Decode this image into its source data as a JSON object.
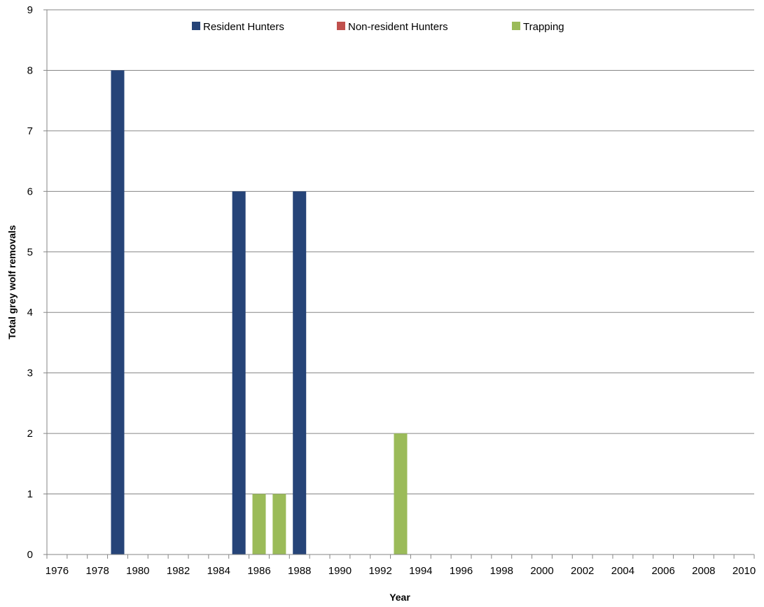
{
  "chart_data": {
    "type": "bar",
    "xlabel": "Year",
    "ylabel": "Total grey wolf removals",
    "ylim": [
      0,
      9
    ],
    "yticks": [
      "0",
      "1",
      "2",
      "3",
      "4",
      "5",
      "6",
      "7",
      "8",
      "9"
    ],
    "x_start": 1976,
    "x_end": 2010,
    "xticks": [
      "1976",
      "1978",
      "1980",
      "1982",
      "1984",
      "1986",
      "1988",
      "1990",
      "1992",
      "1994",
      "1996",
      "1998",
      "2000",
      "2002",
      "2004",
      "2006",
      "2008",
      "2010"
    ],
    "grid": "horizontal",
    "legend_position": "top-center",
    "series": [
      {
        "name": "Resident Hunters",
        "color": "#264478",
        "points": [
          {
            "year": 1979,
            "value": 8
          },
          {
            "year": 1985,
            "value": 6
          },
          {
            "year": 1988,
            "value": 6
          }
        ]
      },
      {
        "name": "Non-resident Hunters",
        "color": "#c0504d",
        "points": []
      },
      {
        "name": "Trapping",
        "color": "#9bbb59",
        "points": [
          {
            "year": 1986,
            "value": 1
          },
          {
            "year": 1987,
            "value": 1
          },
          {
            "year": 1993,
            "value": 2
          }
        ]
      }
    ]
  }
}
